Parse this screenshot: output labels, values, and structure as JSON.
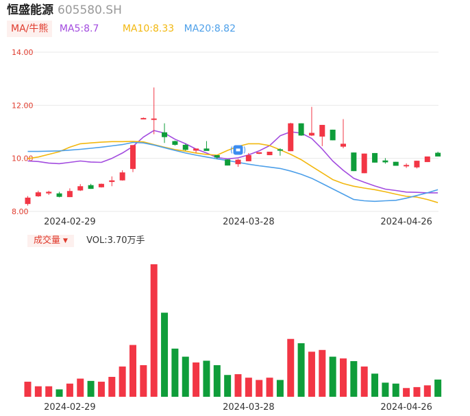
{
  "header": {
    "name": "恒盛能源",
    "code": "605580.SH"
  },
  "legend": {
    "ma_label": "MA/牛熊",
    "items": [
      {
        "text": "MA5:8.7",
        "color": "#a24bdf"
      },
      {
        "text": "MA10:8.33",
        "color": "#f2b70e"
      },
      {
        "text": "MA20:8.82",
        "color": "#4c9fe9"
      }
    ]
  },
  "volume_panel": {
    "label": "成交量",
    "value": "VOL:3.70万手"
  },
  "colors": {
    "up": "#f23645",
    "down": "#0f9d3a",
    "grid": "#e8e8e8",
    "axis_text": "#e03a2c",
    "badge": "#3b8cf0"
  },
  "chart_data": [
    {
      "type": "candlestick",
      "y_ticks": [
        "14.00",
        "12.00",
        "10.00",
        "8.00"
      ],
      "y_tick_values": [
        14,
        12,
        10,
        8
      ],
      "ylim": [
        8,
        14
      ],
      "x_tick_labels": [
        "2024-02-29",
        "2024-03-28",
        "2024-04-26"
      ],
      "x_tick_index": [
        4,
        21,
        36
      ],
      "grid": true,
      "ohlc": [
        [
          8.28,
          8.58,
          8.22,
          8.52
        ],
        [
          8.57,
          8.78,
          8.55,
          8.72
        ],
        [
          8.68,
          8.78,
          8.62,
          8.74
        ],
        [
          8.68,
          8.74,
          8.53,
          8.55
        ],
        [
          8.54,
          8.87,
          8.54,
          8.77
        ],
        [
          8.79,
          9.03,
          8.77,
          8.95
        ],
        [
          8.99,
          9.04,
          8.85,
          8.85
        ],
        [
          8.91,
          9.05,
          8.9,
          9.04
        ],
        [
          9.11,
          9.32,
          8.95,
          9.17
        ],
        [
          9.17,
          9.55,
          9.16,
          9.47
        ],
        [
          9.6,
          10.5,
          9.48,
          10.5
        ],
        [
          11.48,
          11.54,
          11.48,
          11.52
        ],
        [
          11.5,
          12.67,
          10.91,
          11.5
        ],
        [
          10.98,
          11.32,
          10.58,
          10.8
        ],
        [
          10.65,
          10.67,
          10.48,
          10.51
        ],
        [
          10.51,
          10.55,
          10.29,
          10.32
        ],
        [
          10.29,
          10.35,
          10.21,
          10.37
        ],
        [
          10.37,
          10.65,
          10.3,
          10.28
        ],
        [
          10.12,
          10.12,
          9.98,
          10.03
        ],
        [
          9.96,
          9.96,
          9.73,
          9.73
        ],
        [
          9.78,
          9.98,
          9.68,
          9.95
        ],
        [
          9.89,
          10.2,
          9.89,
          10.12
        ],
        [
          10.17,
          10.22,
          10.16,
          10.23
        ],
        [
          10.12,
          10.24,
          10.12,
          10.25
        ],
        [
          10.34,
          10.38,
          10.1,
          10.29
        ],
        [
          10.27,
          11.34,
          10.27,
          11.32
        ],
        [
          11.32,
          11.32,
          10.85,
          10.86
        ],
        [
          10.86,
          11.94,
          10.84,
          10.96
        ],
        [
          10.82,
          11.26,
          10.46,
          11.26
        ],
        [
          11.08,
          11.08,
          10.68,
          10.68
        ],
        [
          10.44,
          11.48,
          10.38,
          10.55
        ],
        [
          10.22,
          10.22,
          9.52,
          9.52
        ],
        [
          9.44,
          10.18,
          9.44,
          10.18
        ],
        [
          10.2,
          10.2,
          9.84,
          9.84
        ],
        [
          9.92,
          10.01,
          9.8,
          9.85
        ],
        [
          9.87,
          9.87,
          9.72,
          9.72
        ],
        [
          9.72,
          9.81,
          9.64,
          9.75
        ],
        [
          9.66,
          9.91,
          9.62,
          9.91
        ],
        [
          9.86,
          10.07,
          9.86,
          10.07
        ],
        [
          10.21,
          10.25,
          10.1,
          10.07
        ]
      ],
      "series": [
        {
          "key": "MA5",
          "color": "#a24bdf",
          "values": [
            9.9,
            9.88,
            9.82,
            9.8,
            9.85,
            9.9,
            9.86,
            9.85,
            10.0,
            10.2,
            10.45,
            10.8,
            11.05,
            10.95,
            10.72,
            10.55,
            10.35,
            10.2,
            10.03,
            9.98,
            10.02,
            10.13,
            10.28,
            10.48,
            10.85,
            11.0,
            10.95,
            10.75,
            10.35,
            9.9,
            9.55,
            9.25,
            9.1,
            8.96,
            8.84,
            8.79,
            8.73,
            8.72,
            8.7,
            8.7
          ]
        },
        {
          "key": "MA10",
          "color": "#f2b70e",
          "values": [
            9.99,
            10.05,
            10.15,
            10.25,
            10.42,
            10.55,
            10.58,
            10.61,
            10.63,
            10.63,
            10.64,
            10.62,
            10.52,
            10.42,
            10.33,
            10.27,
            10.2,
            10.15,
            10.12,
            10.3,
            10.45,
            10.55,
            10.55,
            10.48,
            10.32,
            10.15,
            9.95,
            9.7,
            9.45,
            9.2,
            9.05,
            8.95,
            8.88,
            8.82,
            8.74,
            8.65,
            8.57,
            8.54,
            8.45,
            8.33
          ]
        },
        {
          "key": "MA20",
          "color": "#4c9fe9",
          "values": [
            10.26,
            10.26,
            10.27,
            10.28,
            10.31,
            10.34,
            10.38,
            10.42,
            10.47,
            10.52,
            10.6,
            10.58,
            10.5,
            10.4,
            10.3,
            10.2,
            10.12,
            10.05,
            9.98,
            9.92,
            9.85,
            9.78,
            9.72,
            9.67,
            9.62,
            9.52,
            9.4,
            9.25,
            9.05,
            8.85,
            8.65,
            8.45,
            8.4,
            8.38,
            8.4,
            8.42,
            8.5,
            8.6,
            8.7,
            8.82
          ]
        }
      ],
      "badge_index": 20
    },
    {
      "type": "bar",
      "volumes": [
        0.112,
        0.078,
        0.078,
        0.055,
        0.098,
        0.135,
        0.118,
        0.112,
        0.148,
        0.225,
        0.385,
        0.235,
        0.985,
        0.625,
        0.358,
        0.298,
        0.255,
        0.268,
        0.235,
        0.162,
        0.168,
        0.142,
        0.125,
        0.142,
        0.125,
        0.43,
        0.398,
        0.335,
        0.348,
        0.298,
        0.285,
        0.265,
        0.225,
        0.172,
        0.105,
        0.098,
        0.065,
        0.072,
        0.085,
        0.128
      ],
      "ylim": [
        0,
        1
      ],
      "x_tick_labels": [
        "2024-02-29",
        "2024-03-28",
        "2024-04-26"
      ]
    }
  ]
}
